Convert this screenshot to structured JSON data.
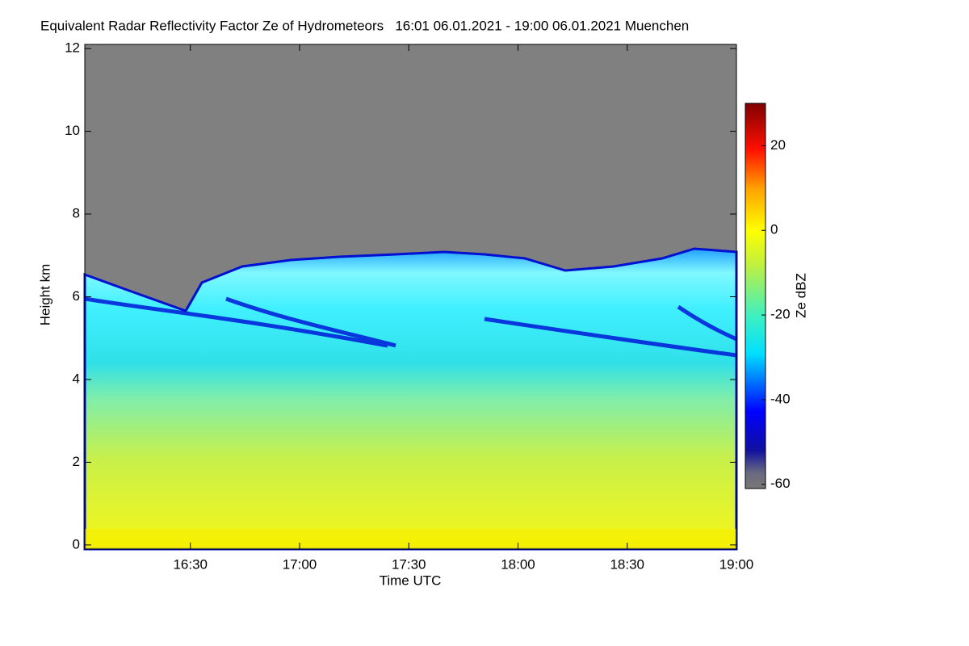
{
  "chart_data": {
    "type": "heatmap",
    "title": "Equivalent Radar Reflectivity Factor Ze of Hydrometeors   16:01 06.01.2021 - 19:00 06.01.2021 Muenchen",
    "x_label": "Time UTC",
    "y_label": "Height km",
    "colorbar_label": "Ze dBZ",
    "xlim": [
      961,
      1140
    ],
    "xticks": [
      {
        "value": 990,
        "label": "16:30"
      },
      {
        "value": 1020,
        "label": "17:00"
      },
      {
        "value": 1050,
        "label": "17:30"
      },
      {
        "value": 1080,
        "label": "18:00"
      },
      {
        "value": 1110,
        "label": "18:30"
      },
      {
        "value": 1140,
        "label": "19:00"
      }
    ],
    "ylim": [
      -0.1,
      12.1
    ],
    "yticks": [
      0,
      2,
      4,
      6,
      8,
      10,
      12
    ],
    "colorbar_lim": [
      -61,
      30
    ],
    "colorbar_ticks": [
      -60,
      -40,
      -20,
      0,
      20
    ]
  }
}
